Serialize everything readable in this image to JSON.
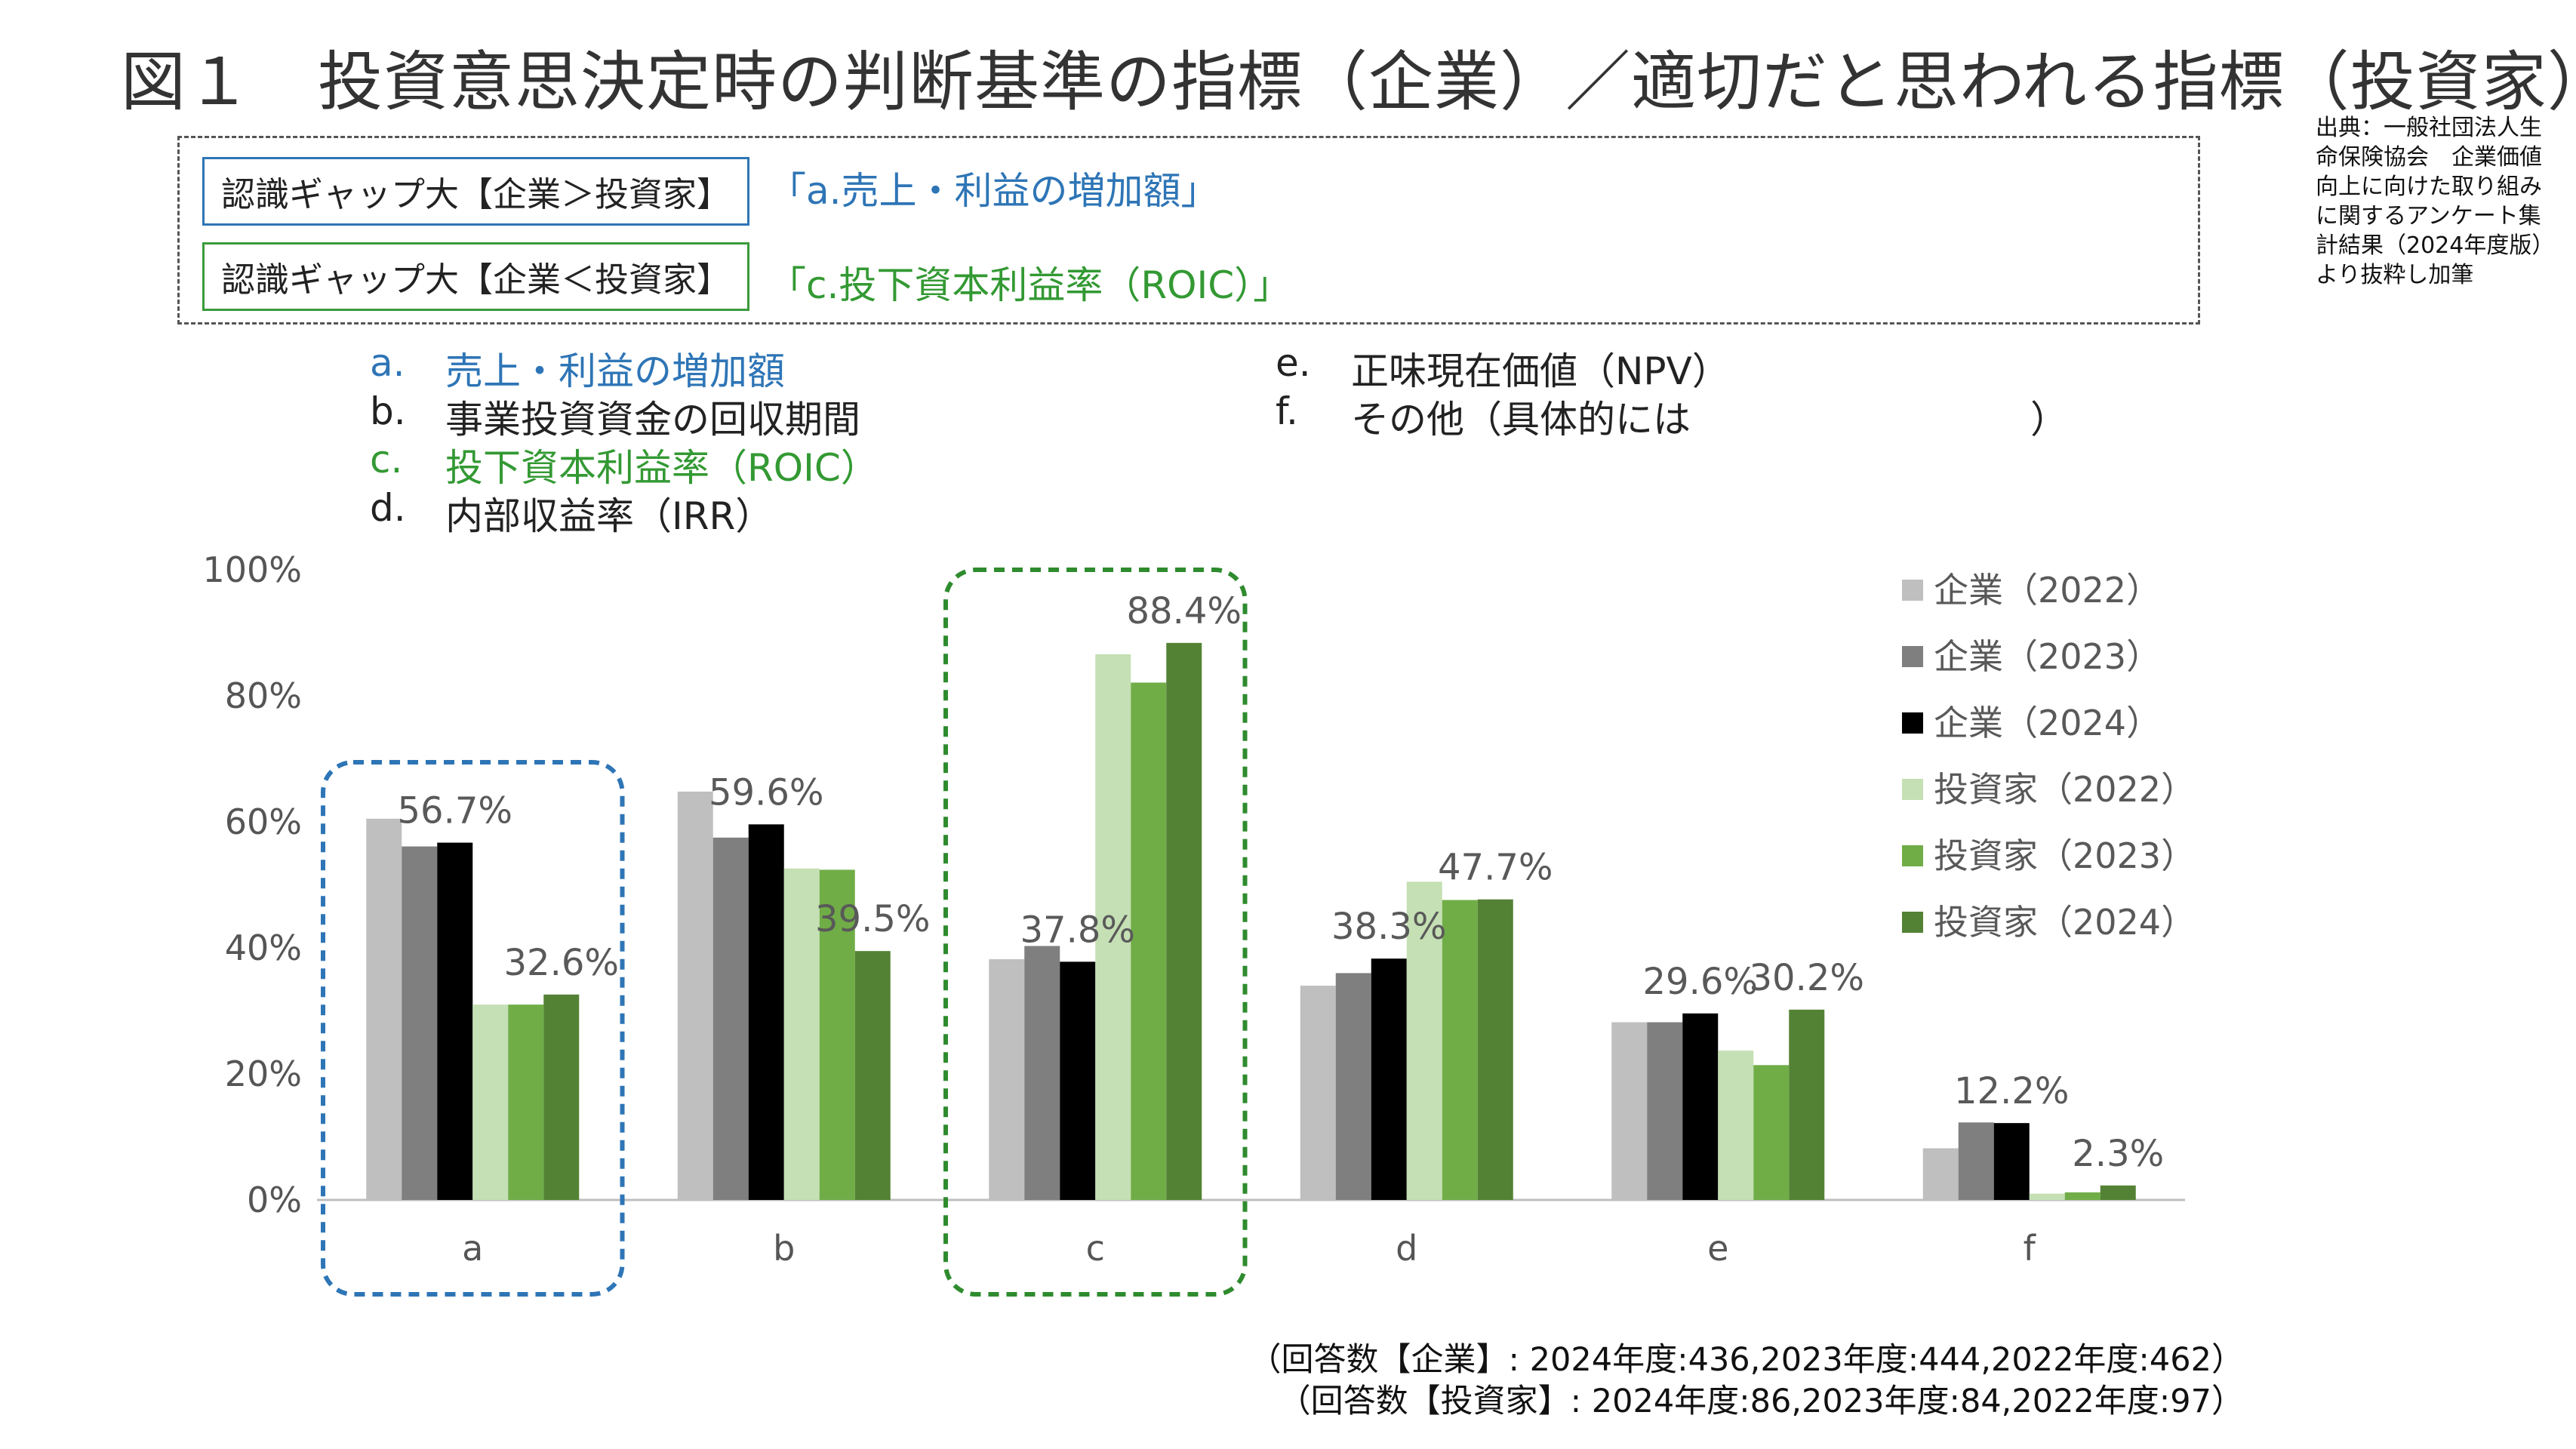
{
  "title": "図１　投資意思決定時の判断基準の指標（企業）／適切だと思われる指標（投資家）",
  "source": "出典：一般社団法人生命保険協会　企業価値向上に向けた取り組みに関するアンケート集計結果（2024年度版）より抜粋し加筆",
  "gap": {
    "gap1_label": "認識ギャップ大【企業＞投資家】",
    "gap1_value": "「a.売上・利益の増加額」",
    "gap2_label": "認識ギャップ大【企業＜投資家】",
    "gap2_value": "「c.投下資本利益率（ROIC）」"
  },
  "indicators": [
    {
      "letter": "a.",
      "text": "売上・利益の増加額",
      "color": "#2E75B6"
    },
    {
      "letter": "b.",
      "text": "事業投資資金の回収期間",
      "color": "#222222"
    },
    {
      "letter": "c.",
      "text": "投下資本利益率（ROIC）",
      "color": "#339933"
    },
    {
      "letter": "d.",
      "text": "内部収益率（IRR）",
      "color": "#222222"
    },
    {
      "letter": "e.",
      "text": "正味現在価値（NPV）",
      "color": "#222222"
    },
    {
      "letter": "f.",
      "text": "その他（具体的には　　　　　　　　　）",
      "color": "#222222"
    }
  ],
  "notes": {
    "line1": "（回答数【企業】: 2024年度:436,2023年度:444,2022年度:462）",
    "line2": "（回答数【投資家】: 2024年度:86,2023年度:84,2022年度:97）"
  },
  "chart_data": {
    "type": "bar",
    "categories": [
      "a",
      "b",
      "c",
      "d",
      "e",
      "f"
    ],
    "ylim": [
      0,
      100
    ],
    "yticks": [
      "0%",
      "20%",
      "40%",
      "60%",
      "80%",
      "100%"
    ],
    "series": [
      {
        "name": "企業（2022）",
        "color": "#BFBFBF",
        "values": [
          60.5,
          64.8,
          38.2,
          34.0,
          28.2,
          8.2
        ]
      },
      {
        "name": "企業（2023）",
        "color": "#7F7F7F",
        "values": [
          56.1,
          57.5,
          40.3,
          36.0,
          28.2,
          12.3
        ]
      },
      {
        "name": "企業（2024）",
        "color": "#000000",
        "values": [
          56.7,
          59.6,
          37.8,
          38.3,
          29.6,
          12.2
        ]
      },
      {
        "name": "投資家（2022）",
        "color": "#C5E0B4",
        "values": [
          31.0,
          52.6,
          86.6,
          50.5,
          23.7,
          1.0
        ]
      },
      {
        "name": "投資家（2023）",
        "color": "#70AD47",
        "values": [
          31.0,
          52.4,
          82.1,
          47.6,
          21.4,
          1.2
        ]
      },
      {
        "name": "投資家（2024）",
        "color": "#548235",
        "values": [
          32.6,
          39.5,
          88.4,
          47.7,
          30.2,
          2.3
        ]
      }
    ],
    "data_labels": [
      {
        "category": "a",
        "text": "56.7%"
      },
      {
        "category": "a",
        "text": "32.6%"
      },
      {
        "category": "b",
        "text": "59.6%"
      },
      {
        "category": "b",
        "text": "39.5%"
      },
      {
        "category": "c",
        "text": "37.8%"
      },
      {
        "category": "c",
        "text": "88.4%"
      },
      {
        "category": "d",
        "text": "38.3%"
      },
      {
        "category": "d",
        "text": "47.7%"
      },
      {
        "category": "e",
        "text": "29.6%"
      },
      {
        "category": "e",
        "text": "30.2%"
      },
      {
        "category": "f",
        "text": "12.2%"
      },
      {
        "category": "f",
        "text": "2.3%"
      }
    ],
    "highlight_categories": [
      {
        "category": "a",
        "color": "#2E75B6"
      },
      {
        "category": "c",
        "color": "#2E8B2E"
      }
    ]
  }
}
